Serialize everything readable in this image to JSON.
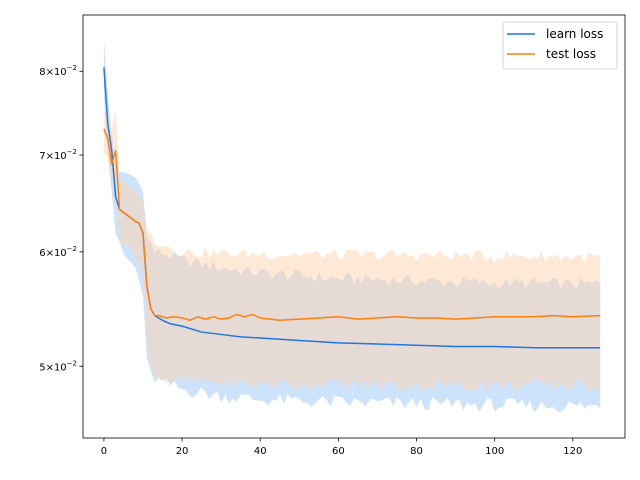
{
  "chart_data": {
    "type": "line",
    "xlim": [
      -5.35,
      133.35
    ],
    "ylim": [
      0.0446,
      0.0875
    ],
    "yscale": "log",
    "grid": false,
    "legend_position": "top-right",
    "x_ticks": [
      0,
      20,
      40,
      60,
      80,
      100,
      120
    ],
    "x_tick_labels": [
      "0",
      "20",
      "40",
      "60",
      "80",
      "100",
      "120"
    ],
    "y_ticks": [
      0.05,
      0.06,
      0.07,
      0.08
    ],
    "y_tick_labels": [
      {
        "mant": "5",
        "exp": "−2"
      },
      {
        "mant": "6",
        "exp": "−2"
      },
      {
        "mant": "7",
        "exp": "−2"
      },
      {
        "mant": "8",
        "exp": "−2"
      }
    ],
    "series": [
      {
        "name": "learn loss",
        "color": "#1f77e0",
        "band_color": "#99c8f7",
        "points": [
          [
            0,
            0.0805
          ],
          [
            1,
            0.0735
          ],
          [
            2,
            0.0705
          ],
          [
            3,
            0.0655
          ],
          [
            4,
            0.0642
          ],
          [
            6,
            0.0636
          ],
          [
            8,
            0.063
          ],
          [
            9,
            0.0628
          ],
          [
            10,
            0.0618
          ],
          [
            11,
            0.0568
          ],
          [
            12,
            0.0548
          ],
          [
            13,
            0.0542
          ],
          [
            14,
            0.054
          ],
          [
            15,
            0.0538
          ],
          [
            17,
            0.0535
          ],
          [
            20,
            0.0533
          ],
          [
            25,
            0.0528
          ],
          [
            30,
            0.0526
          ],
          [
            35,
            0.0524
          ],
          [
            40,
            0.0523
          ],
          [
            50,
            0.0521
          ],
          [
            60,
            0.0519
          ],
          [
            70,
            0.0518
          ],
          [
            80,
            0.0517
          ],
          [
            90,
            0.0516
          ],
          [
            100,
            0.0516
          ],
          [
            110,
            0.0515
          ],
          [
            120,
            0.0515
          ],
          [
            127,
            0.0515
          ]
        ],
        "upper": [
          [
            0,
            0.0842
          ],
          [
            1,
            0.077
          ],
          [
            2,
            0.0725
          ],
          [
            3,
            0.0685
          ],
          [
            5,
            0.068
          ],
          [
            8,
            0.0676
          ],
          [
            10,
            0.0662
          ],
          [
            11,
            0.0615
          ],
          [
            13,
            0.06
          ],
          [
            16,
            0.0598
          ],
          [
            20,
            0.0592
          ],
          [
            30,
            0.0585
          ],
          [
            40,
            0.058
          ],
          [
            60,
            0.0575
          ],
          [
            80,
            0.0573
          ],
          [
            100,
            0.0571
          ],
          [
            127,
            0.057
          ]
        ],
        "lower": [
          [
            0,
            0.077
          ],
          [
            1,
            0.0705
          ],
          [
            2,
            0.066
          ],
          [
            3,
            0.0618
          ],
          [
            5,
            0.0598
          ],
          [
            8,
            0.0585
          ],
          [
            10,
            0.056
          ],
          [
            11,
            0.0505
          ],
          [
            12,
            0.0493
          ],
          [
            14,
            0.0488
          ],
          [
            16,
            0.0486
          ],
          [
            20,
            0.0482
          ],
          [
            30,
            0.0477
          ],
          [
            40,
            0.0474
          ],
          [
            60,
            0.0472
          ],
          [
            80,
            0.0471
          ],
          [
            100,
            0.047
          ],
          [
            127,
            0.0469
          ]
        ]
      },
      {
        "name": "test loss",
        "color": "#ff7f0e",
        "band_color": "#fdd2ae",
        "points": [
          [
            0,
            0.073
          ],
          [
            1,
            0.0718
          ],
          [
            2,
            0.069
          ],
          [
            3,
            0.0705
          ],
          [
            4,
            0.0642
          ],
          [
            6,
            0.0636
          ],
          [
            8,
            0.063
          ],
          [
            9,
            0.0628
          ],
          [
            10,
            0.0618
          ],
          [
            11,
            0.0568
          ],
          [
            12,
            0.0548
          ],
          [
            13,
            0.0542
          ],
          [
            14,
            0.0542
          ],
          [
            16,
            0.054
          ],
          [
            18,
            0.0541
          ],
          [
            20,
            0.054
          ],
          [
            22,
            0.0538
          ],
          [
            24,
            0.0541
          ],
          [
            26,
            0.0539
          ],
          [
            28,
            0.0541
          ],
          [
            30,
            0.0539
          ],
          [
            32,
            0.054
          ],
          [
            34,
            0.0543
          ],
          [
            36,
            0.0541
          ],
          [
            38,
            0.0543
          ],
          [
            40,
            0.054
          ],
          [
            45,
            0.0538
          ],
          [
            50,
            0.0539
          ],
          [
            55,
            0.054
          ],
          [
            60,
            0.0541
          ],
          [
            65,
            0.0539
          ],
          [
            70,
            0.054
          ],
          [
            75,
            0.0541
          ],
          [
            80,
            0.054
          ],
          [
            85,
            0.054
          ],
          [
            90,
            0.0539
          ],
          [
            95,
            0.054
          ],
          [
            100,
            0.0541
          ],
          [
            105,
            0.0541
          ],
          [
            110,
            0.0541
          ],
          [
            115,
            0.0542
          ],
          [
            120,
            0.0541
          ],
          [
            127,
            0.0542
          ]
        ],
        "upper": [
          [
            0,
            0.0755
          ],
          [
            1,
            0.0745
          ],
          [
            2,
            0.073
          ],
          [
            3,
            0.075
          ],
          [
            4,
            0.0672
          ],
          [
            6,
            0.0668
          ],
          [
            8,
            0.0662
          ],
          [
            10,
            0.065
          ],
          [
            11,
            0.062
          ],
          [
            13,
            0.0612
          ],
          [
            16,
            0.0606
          ],
          [
            20,
            0.06
          ],
          [
            30,
            0.0598
          ],
          [
            40,
            0.0598
          ],
          [
            60,
            0.0597
          ],
          [
            80,
            0.0597
          ],
          [
            100,
            0.0596
          ],
          [
            127,
            0.0595
          ]
        ],
        "lower": [
          [
            0,
            0.0705
          ],
          [
            1,
            0.0695
          ],
          [
            2,
            0.0665
          ],
          [
            3,
            0.0672
          ],
          [
            4,
            0.061
          ],
          [
            6,
            0.0605
          ],
          [
            8,
            0.0598
          ],
          [
            10,
            0.058
          ],
          [
            11,
            0.052
          ],
          [
            12,
            0.05
          ],
          [
            14,
            0.0492
          ],
          [
            16,
            0.049
          ],
          [
            20,
            0.0488
          ],
          [
            30,
            0.0487
          ],
          [
            40,
            0.0486
          ],
          [
            60,
            0.0486
          ],
          [
            80,
            0.0485
          ],
          [
            100,
            0.0485
          ],
          [
            127,
            0.0485
          ]
        ]
      }
    ]
  }
}
